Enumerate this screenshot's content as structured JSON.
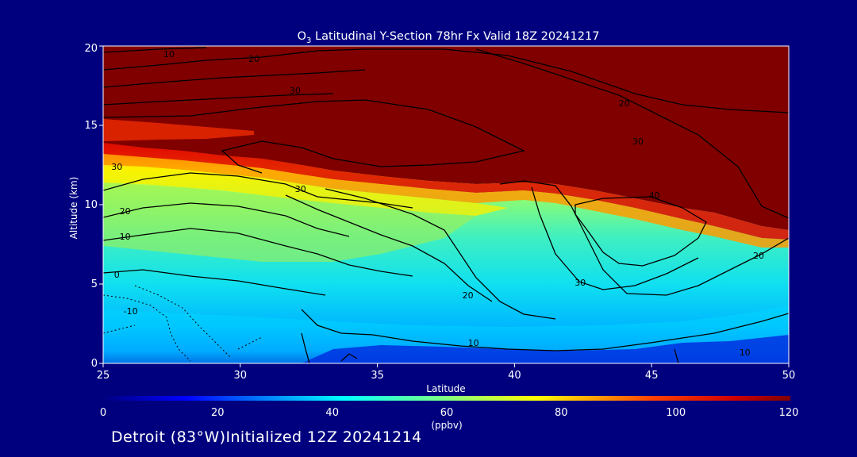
{
  "chart_data": {
    "type": "heatmap",
    "title_prefix": "O",
    "title_sub": "3",
    "title_rest": " Latitudinal Y-Section 78hr  Fx Valid 18Z 20241217",
    "xlabel": "Latitude",
    "ylabel": "Altitude (km)",
    "xlim": [
      25,
      50
    ],
    "ylim": [
      0,
      20
    ],
    "xticks": [
      "25",
      "30",
      "35",
      "40",
      "45",
      "50"
    ],
    "yticks": [
      "0",
      "5",
      "10",
      "15",
      "20"
    ],
    "colorbar": {
      "range": [
        0,
        120
      ],
      "ticks": [
        "0",
        "20",
        "40",
        "60",
        "80",
        "100",
        "120"
      ],
      "unit": "(ppbv)"
    },
    "contour_labels": [
      {
        "text": "10",
        "lat": 27.4,
        "alt": 19.3
      },
      {
        "text": "20",
        "lat": 30.5,
        "alt": 19.0
      },
      {
        "text": "30",
        "lat": 32.0,
        "alt": 17.0
      },
      {
        "text": "20",
        "lat": 44.0,
        "alt": 16.2
      },
      {
        "text": "30",
        "lat": 44.5,
        "alt": 13.8
      },
      {
        "text": "30",
        "lat": 25.5,
        "alt": 12.2
      },
      {
        "text": "30",
        "lat": 32.2,
        "alt": 10.8
      },
      {
        "text": "40",
        "lat": 45.1,
        "alt": 10.4
      },
      {
        "text": "20",
        "lat": 25.8,
        "alt": 9.4
      },
      {
        "text": "10",
        "lat": 25.8,
        "alt": 7.8
      },
      {
        "text": "20",
        "lat": 48.9,
        "alt": 6.6
      },
      {
        "text": "0",
        "lat": 25.5,
        "alt": 5.4
      },
      {
        "text": "30",
        "lat": 42.4,
        "alt": 4.9
      },
      {
        "text": "20",
        "lat": 38.3,
        "alt": 4.1
      },
      {
        "text": "-10",
        "lat": 26.0,
        "alt": 3.1
      },
      {
        "text": "10",
        "lat": 38.5,
        "alt": 1.1
      },
      {
        "text": "10",
        "lat": 48.4,
        "alt": 0.5
      }
    ]
  },
  "footer": "Detroit (83°W)Initialized 12Z 20241214"
}
